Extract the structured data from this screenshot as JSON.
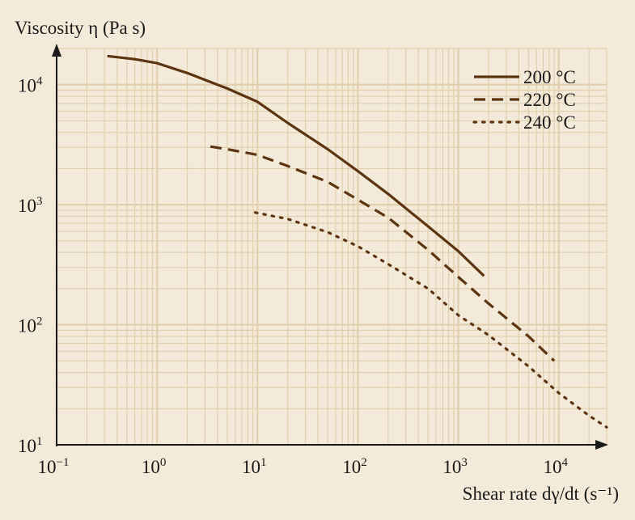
{
  "chart_data": {
    "type": "line",
    "ylabel": "Viscosity η (Pa s)",
    "xlabel": "Shear rate dγ/dt (s⁻¹)",
    "x_scale": "log",
    "y_scale": "log",
    "xlim": [
      0.1,
      30000
    ],
    "ylim": [
      10,
      20000
    ],
    "x_ticks": [
      {
        "value": 0.1,
        "base": "10",
        "exp": "−1"
      },
      {
        "value": 1,
        "base": "10",
        "exp": "0"
      },
      {
        "value": 10,
        "base": "10",
        "exp": "1"
      },
      {
        "value": 100,
        "base": "10",
        "exp": "2"
      },
      {
        "value": 1000,
        "base": "10",
        "exp": "3"
      },
      {
        "value": 10000,
        "base": "10",
        "exp": "4"
      }
    ],
    "y_ticks": [
      {
        "value": 10,
        "base": "10",
        "exp": "1"
      },
      {
        "value": 100,
        "base": "10",
        "exp": "2"
      },
      {
        "value": 1000,
        "base": "10",
        "exp": "3"
      },
      {
        "value": 10000,
        "base": "10",
        "exp": "4"
      }
    ],
    "grid": true,
    "legend_position": "top-right",
    "colors": {
      "curve": "#5c3510",
      "grid": "#e2cfae",
      "background": "#f3ead9",
      "axis": "#1a1a1a"
    },
    "series": [
      {
        "name": "200 °C",
        "style": "solid",
        "points": [
          [
            0.32,
            17300
          ],
          [
            0.6,
            16300
          ],
          [
            1,
            15100
          ],
          [
            2,
            12500
          ],
          [
            5,
            9300
          ],
          [
            10,
            7200
          ],
          [
            20,
            4800
          ],
          [
            50,
            2900
          ],
          [
            100,
            1900
          ],
          [
            200,
            1230
          ],
          [
            500,
            660
          ],
          [
            1000,
            410
          ],
          [
            1800,
            255
          ]
        ]
      },
      {
        "name": "220 °C",
        "style": "dashed",
        "points": [
          [
            3.4,
            3050
          ],
          [
            5,
            2900
          ],
          [
            10,
            2600
          ],
          [
            20,
            2100
          ],
          [
            50,
            1550
          ],
          [
            100,
            1100
          ],
          [
            200,
            780
          ],
          [
            500,
            420
          ],
          [
            1000,
            250
          ],
          [
            2000,
            150
          ],
          [
            5000,
            80
          ],
          [
            9000,
            50
          ]
        ]
      },
      {
        "name": "240 °C",
        "style": "dotted",
        "points": [
          [
            9.5,
            860
          ],
          [
            20,
            760
          ],
          [
            50,
            590
          ],
          [
            100,
            450
          ],
          [
            200,
            320
          ],
          [
            500,
            200
          ],
          [
            1000,
            120
          ],
          [
            2000,
            82
          ],
          [
            5000,
            45
          ],
          [
            10000,
            27
          ],
          [
            20000,
            17.5
          ],
          [
            30000,
            14
          ]
        ]
      }
    ]
  }
}
